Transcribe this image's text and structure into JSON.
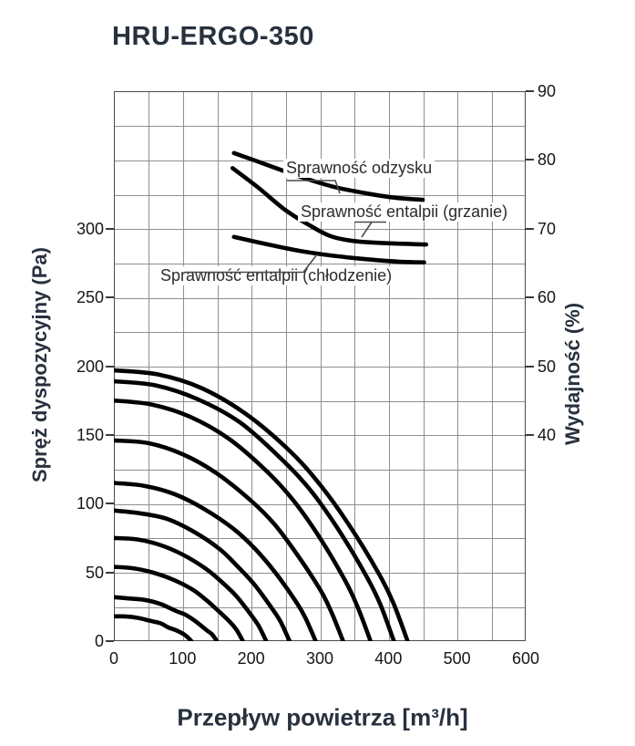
{
  "title": "HRU-ERGO-350",
  "axes": {
    "x": {
      "label": "Przepływ powietrza [m³/h]",
      "min": 0,
      "max": 600,
      "grid_step": 50,
      "ticks": [
        0,
        100,
        200,
        300,
        400,
        500,
        600
      ]
    },
    "y_left": {
      "label": "Spręż dyspozycyjny (Pa)",
      "min": 0,
      "max": 400,
      "grid_step": 25,
      "ticks": [
        300,
        250,
        200,
        150,
        100,
        50,
        0
      ]
    },
    "y_right": {
      "label": "Wydajność (%)",
      "min": 10,
      "max": 90,
      "grid_step": 5,
      "ticks": [
        90,
        80,
        70,
        60,
        50,
        40
      ]
    }
  },
  "chart_data": {
    "type": "line",
    "title": "HRU-ERGO-350",
    "xlabel": "Przepływ powietrza [m³/h]",
    "ylabel_left": "Spręż dyspozycyjny (Pa)",
    "ylabel_right": "Wydajność (%)",
    "x_range": [
      0,
      600
    ],
    "y_left_range": [
      0,
      400
    ],
    "y_right_range": [
      10,
      90
    ],
    "grid": "on",
    "line_color": "#000000",
    "efficiency_curves_axis": "right (%)",
    "efficiency_curves": [
      {
        "label": "Sprawność odzysku",
        "points": [
          [
            175,
            81.0
          ],
          [
            220,
            79.4
          ],
          [
            270,
            77.6
          ],
          [
            320,
            76.1
          ],
          [
            370,
            75.1
          ],
          [
            410,
            74.5
          ],
          [
            450,
            74.2
          ]
        ]
      },
      {
        "label": "Sprawność entalpii (grzanie)",
        "points": [
          [
            173,
            78.8
          ],
          [
            210,
            76.0
          ],
          [
            250,
            72.7
          ],
          [
            285,
            70.5
          ],
          [
            316,
            68.9
          ],
          [
            350,
            68.2
          ],
          [
            395,
            67.9
          ],
          [
            455,
            67.7
          ]
        ]
      },
      {
        "label": "Sprawność entalpii (chłodzenie)",
        "points": [
          [
            175,
            68.8
          ],
          [
            225,
            67.7
          ],
          [
            275,
            66.7
          ],
          [
            325,
            66.0
          ],
          [
            375,
            65.5
          ],
          [
            415,
            65.2
          ],
          [
            452,
            65.1
          ]
        ]
      }
    ],
    "fan_curves_axis": "left (Pa)",
    "fan_curves": [
      {
        "p0": 197,
        "q_max": 428,
        "points": [
          [
            0,
            197
          ],
          [
            64,
            194
          ],
          [
            128,
            184
          ],
          [
            193,
            165
          ],
          [
            257,
            138
          ],
          [
            300,
            114
          ],
          [
            342,
            85
          ],
          [
            385,
            50
          ],
          [
            407,
            28
          ],
          [
            428,
            0
          ]
        ]
      },
      {
        "p0": 189,
        "q_max": 408,
        "points": [
          [
            0,
            189
          ],
          [
            61,
            186
          ],
          [
            122,
            176
          ],
          [
            184,
            159
          ],
          [
            245,
            132
          ],
          [
            286,
            110
          ],
          [
            326,
            82
          ],
          [
            367,
            48
          ],
          [
            388,
            27
          ],
          [
            408,
            0
          ]
        ]
      },
      {
        "p0": 175,
        "q_max": 374,
        "points": [
          [
            0,
            175
          ],
          [
            56,
            172
          ],
          [
            112,
            163
          ],
          [
            168,
            147
          ],
          [
            224,
            123
          ],
          [
            262,
            102
          ],
          [
            299,
            76
          ],
          [
            337,
            44
          ],
          [
            355,
            25
          ],
          [
            374,
            0
          ]
        ]
      },
      {
        "p0": 146,
        "q_max": 334,
        "points": [
          [
            0,
            146
          ],
          [
            50,
            144
          ],
          [
            100,
            136
          ],
          [
            150,
            122
          ],
          [
            200,
            102
          ],
          [
            234,
            85
          ],
          [
            267,
            63
          ],
          [
            301,
            37
          ],
          [
            317,
            21
          ],
          [
            334,
            0
          ]
        ]
      },
      {
        "p0": 115,
        "q_max": 294,
        "points": [
          [
            0,
            115
          ],
          [
            44,
            113
          ],
          [
            88,
            107
          ],
          [
            132,
            96
          ],
          [
            176,
            81
          ],
          [
            206,
            67
          ],
          [
            235,
            50
          ],
          [
            265,
            29
          ],
          [
            279,
            17
          ],
          [
            294,
            0
          ]
        ]
      },
      {
        "p0": 95,
        "q_max": 256,
        "points": [
          [
            0,
            95
          ],
          [
            38,
            93
          ],
          [
            77,
            89
          ],
          [
            115,
            80
          ],
          [
            154,
            67
          ],
          [
            179,
            55
          ],
          [
            205,
            41
          ],
          [
            230,
            24
          ],
          [
            243,
            14
          ],
          [
            256,
            0
          ]
        ]
      },
      {
        "p0": 75,
        "q_max": 222,
        "points": [
          [
            0,
            75
          ],
          [
            33,
            74
          ],
          [
            67,
            70
          ],
          [
            100,
            63
          ],
          [
            133,
            53
          ],
          [
            155,
            44
          ],
          [
            178,
            33
          ],
          [
            200,
            19
          ],
          [
            211,
            11
          ],
          [
            222,
            0
          ]
        ]
      },
      {
        "p0": 54,
        "q_max": 188,
        "points": [
          [
            0,
            54
          ],
          [
            28,
            53
          ],
          [
            56,
            50
          ],
          [
            85,
            45
          ],
          [
            113,
            38
          ],
          [
            132,
            31
          ],
          [
            150,
            23
          ],
          [
            169,
            14
          ],
          [
            179,
            8
          ],
          [
            188,
            0
          ]
        ]
      },
      {
        "p0": 32,
        "q_max": 150,
        "points": [
          [
            0,
            32
          ],
          [
            23,
            31
          ],
          [
            45,
            30
          ],
          [
            68,
            27
          ],
          [
            90,
            22
          ],
          [
            105,
            19
          ],
          [
            120,
            14
          ],
          [
            135,
            8
          ],
          [
            143,
            5
          ],
          [
            150,
            0
          ]
        ]
      },
      {
        "p0": 18,
        "q_max": 113,
        "points": [
          [
            0,
            18
          ],
          [
            17,
            18
          ],
          [
            34,
            17
          ],
          [
            51,
            15
          ],
          [
            68,
            13
          ],
          [
            79,
            10
          ],
          [
            90,
            8
          ],
          [
            102,
            5
          ],
          [
            107,
            3
          ],
          [
            113,
            0
          ]
        ]
      }
    ]
  }
}
